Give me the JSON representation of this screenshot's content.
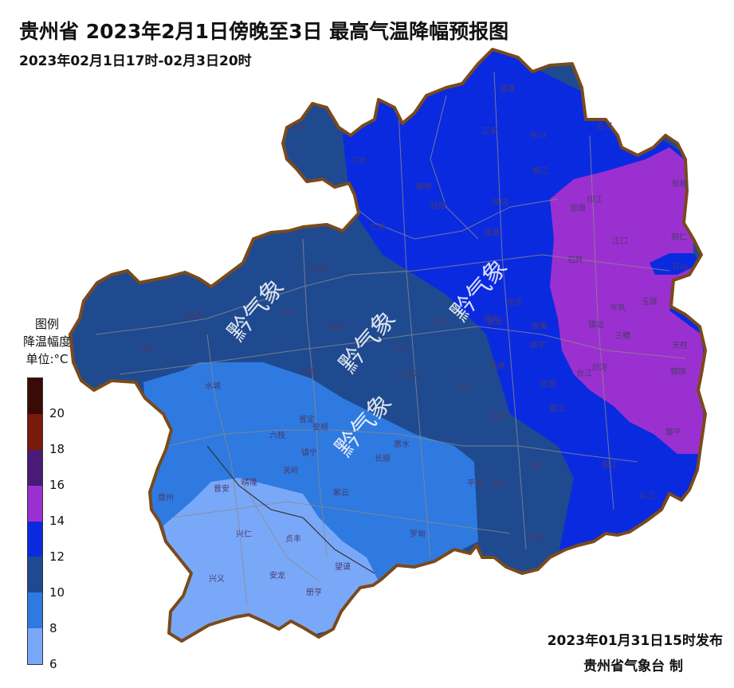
{
  "header": {
    "title": "贵州省 2023年2月1日傍晚至3日 最高气温降幅预报图",
    "subtitle": "2023年02月1日17时-02月3日20时"
  },
  "legend": {
    "title_line1": "图例",
    "title_line2": "降温幅度",
    "unit": "单位:°C",
    "classes": [
      {
        "range": "20-22",
        "color": "#3a0a06"
      },
      {
        "range": "18-20",
        "color": "#7a1a0a"
      },
      {
        "range": "16-18",
        "color": "#4a1a78"
      },
      {
        "range": "14-16",
        "color": "#9b30d0"
      },
      {
        "range": "12-14",
        "color": "#0a2ae0"
      },
      {
        "range": "10-12",
        "color": "#1f4a90"
      },
      {
        "range": "8-10",
        "color": "#2e7ae0"
      },
      {
        "range": "6-8",
        "color": "#7aa8f8"
      }
    ],
    "ticks": [
      "20",
      "18",
      "16",
      "14",
      "12",
      "10",
      "8",
      "6"
    ]
  },
  "counties": [
    "赤水",
    "习水",
    "道真",
    "正安",
    "务川",
    "沿河",
    "桐梓",
    "德江",
    "松桃",
    "绥阳",
    "凤冈",
    "印江",
    "思南",
    "仁怀",
    "湄潭",
    "江口",
    "铜仁",
    "石阡",
    "余庆",
    "万山",
    "玉屏",
    "岑巩",
    "镇远",
    "三穗",
    "天柱",
    "施秉",
    "黄平",
    "剑河",
    "锦屏",
    "台江",
    "黔西",
    "大方",
    "威宁",
    "赫章",
    "纳雍",
    "织金",
    "平坝",
    "开阳",
    "瓮安",
    "福泉",
    "麻江",
    "凯里",
    "丹寨",
    "雷山",
    "榕江",
    "黎平",
    "从江",
    "水城",
    "六枝",
    "普定",
    "安顺",
    "镇宁",
    "关岭",
    "紫云",
    "长顺",
    "惠水",
    "罗甸",
    "平塘",
    "独山",
    "三都",
    "荔波",
    "盘州",
    "普安",
    "晴隆",
    "兴仁",
    "贞丰",
    "望谟",
    "兴义",
    "安龙",
    "册亨",
    "余庆",
    "七星关"
  ],
  "watermarks": [
    "黔气象",
    "黔气象",
    "黔气象",
    "黔气象"
  ],
  "footer": {
    "issued": "2023年01月31日15时发布",
    "producer": "贵州省气象台 制"
  }
}
